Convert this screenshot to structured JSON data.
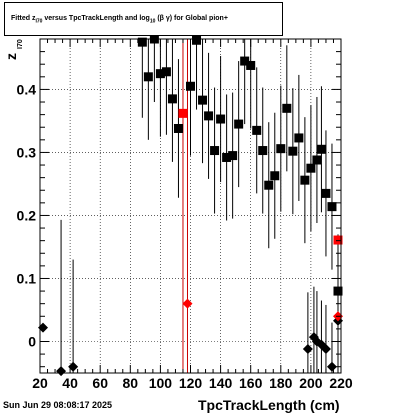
{
  "title": {
    "prefix": "Fitted  z",
    "sub1": "I70",
    "middle": "  versus TpcTrackLength and log",
    "sub2": "10",
    "suffix": "(β γ) for Global pion+"
  },
  "footer": "Sun Jun 29 08:08:17 2025",
  "chart_data": {
    "type": "scatter",
    "xlabel": "TpcTrackLength (cm)",
    "ylabel": "z",
    "ylabel_sub": "I70",
    "xlim": [
      20,
      220
    ],
    "ylim": [
      -0.05,
      0.48
    ],
    "xticks": [
      20,
      40,
      60,
      80,
      100,
      120,
      140,
      160,
      180,
      200,
      220
    ],
    "yticks": [
      0,
      0.1,
      0.2,
      0.3,
      0.4
    ],
    "ytick_labels": [
      "0",
      "0.1",
      "0.2",
      "0.3",
      "0.4"
    ],
    "grid": true,
    "series": [
      {
        "marker": "square",
        "color": "#000000",
        "points": [
          {
            "x": 88,
            "y": 0.475,
            "err": 0.12
          },
          {
            "x": 92,
            "y": 0.42,
            "err": 0.1
          },
          {
            "x": 96,
            "y": 0.48,
            "err": 0.1
          },
          {
            "x": 100,
            "y": 0.425,
            "err": 0.1
          },
          {
            "x": 104,
            "y": 0.428,
            "err": 0.1
          },
          {
            "x": 108,
            "y": 0.385,
            "err": 0.1
          },
          {
            "x": 112,
            "y": 0.338,
            "err": 0.11
          },
          {
            "x": 120,
            "y": 0.405,
            "err": 0.11
          },
          {
            "x": 124,
            "y": 0.478,
            "err": 0.11
          },
          {
            "x": 128,
            "y": 0.383,
            "err": 0.1
          },
          {
            "x": 132,
            "y": 0.358,
            "err": 0.1
          },
          {
            "x": 136,
            "y": 0.303,
            "err": 0.1
          },
          {
            "x": 140,
            "y": 0.353,
            "err": 0.1
          },
          {
            "x": 144,
            "y": 0.292,
            "err": 0.1
          },
          {
            "x": 148,
            "y": 0.295,
            "err": 0.1
          },
          {
            "x": 152,
            "y": 0.345,
            "err": 0.1
          },
          {
            "x": 156,
            "y": 0.445,
            "err": 0.1
          },
          {
            "x": 160,
            "y": 0.438,
            "err": 0.1
          },
          {
            "x": 164,
            "y": 0.335,
            "err": 0.1
          },
          {
            "x": 168,
            "y": 0.303,
            "err": 0.1
          },
          {
            "x": 172,
            "y": 0.248,
            "err": 0.1
          },
          {
            "x": 176,
            "y": 0.263,
            "err": 0.1
          },
          {
            "x": 180,
            "y": 0.306,
            "err": 0.1
          },
          {
            "x": 184,
            "y": 0.37,
            "err": 0.1
          },
          {
            "x": 188,
            "y": 0.302,
            "err": 0.1
          },
          {
            "x": 192,
            "y": 0.323,
            "err": 0.1
          },
          {
            "x": 196,
            "y": 0.256,
            "err": 0.1
          },
          {
            "x": 200,
            "y": 0.275,
            "err": 0.1
          },
          {
            "x": 204,
            "y": 0.288,
            "err": 0.1
          },
          {
            "x": 207,
            "y": 0.305,
            "err": 0.1
          },
          {
            "x": 210,
            "y": 0.235,
            "err": 0.1
          },
          {
            "x": 214,
            "y": 0.214,
            "err": 0.1
          },
          {
            "x": 218,
            "y": 0.08,
            "err": 0.09
          }
        ]
      },
      {
        "marker": "square",
        "color": "#ff0000",
        "points": [
          {
            "x": 115,
            "y": 0.362,
            "err": 0.0
          },
          {
            "x": 218,
            "y": 0.161,
            "err": 0.0
          }
        ]
      },
      {
        "marker": "diamond",
        "color": "#000000",
        "points": [
          {
            "x": 22,
            "y": 0.022,
            "err": 0.0
          },
          {
            "x": 34,
            "y": -0.047,
            "err": 0.24
          },
          {
            "x": 42,
            "y": -0.04,
            "err": 0.17
          },
          {
            "x": 198,
            "y": -0.012,
            "err": 0.09
          },
          {
            "x": 202,
            "y": 0.007,
            "err": 0.08
          },
          {
            "x": 204,
            "y": 0.0,
            "err": 0.08
          },
          {
            "x": 207,
            "y": -0.005,
            "err": 0.07
          },
          {
            "x": 210,
            "y": -0.012,
            "err": 0.07
          },
          {
            "x": 214,
            "y": -0.04,
            "err": 0.07
          },
          {
            "x": 218,
            "y": 0.033,
            "err": 0.1
          }
        ]
      },
      {
        "marker": "diamond",
        "color": "#ff0000",
        "points": [
          {
            "x": 118,
            "y": 0.06,
            "err": 0.0
          },
          {
            "x": 218,
            "y": 0.04,
            "err": 0.0
          }
        ]
      }
    ],
    "vlines": [
      {
        "x": 115,
        "color": "#cc0000"
      },
      {
        "x": 118,
        "color": "#cc0000"
      }
    ]
  }
}
